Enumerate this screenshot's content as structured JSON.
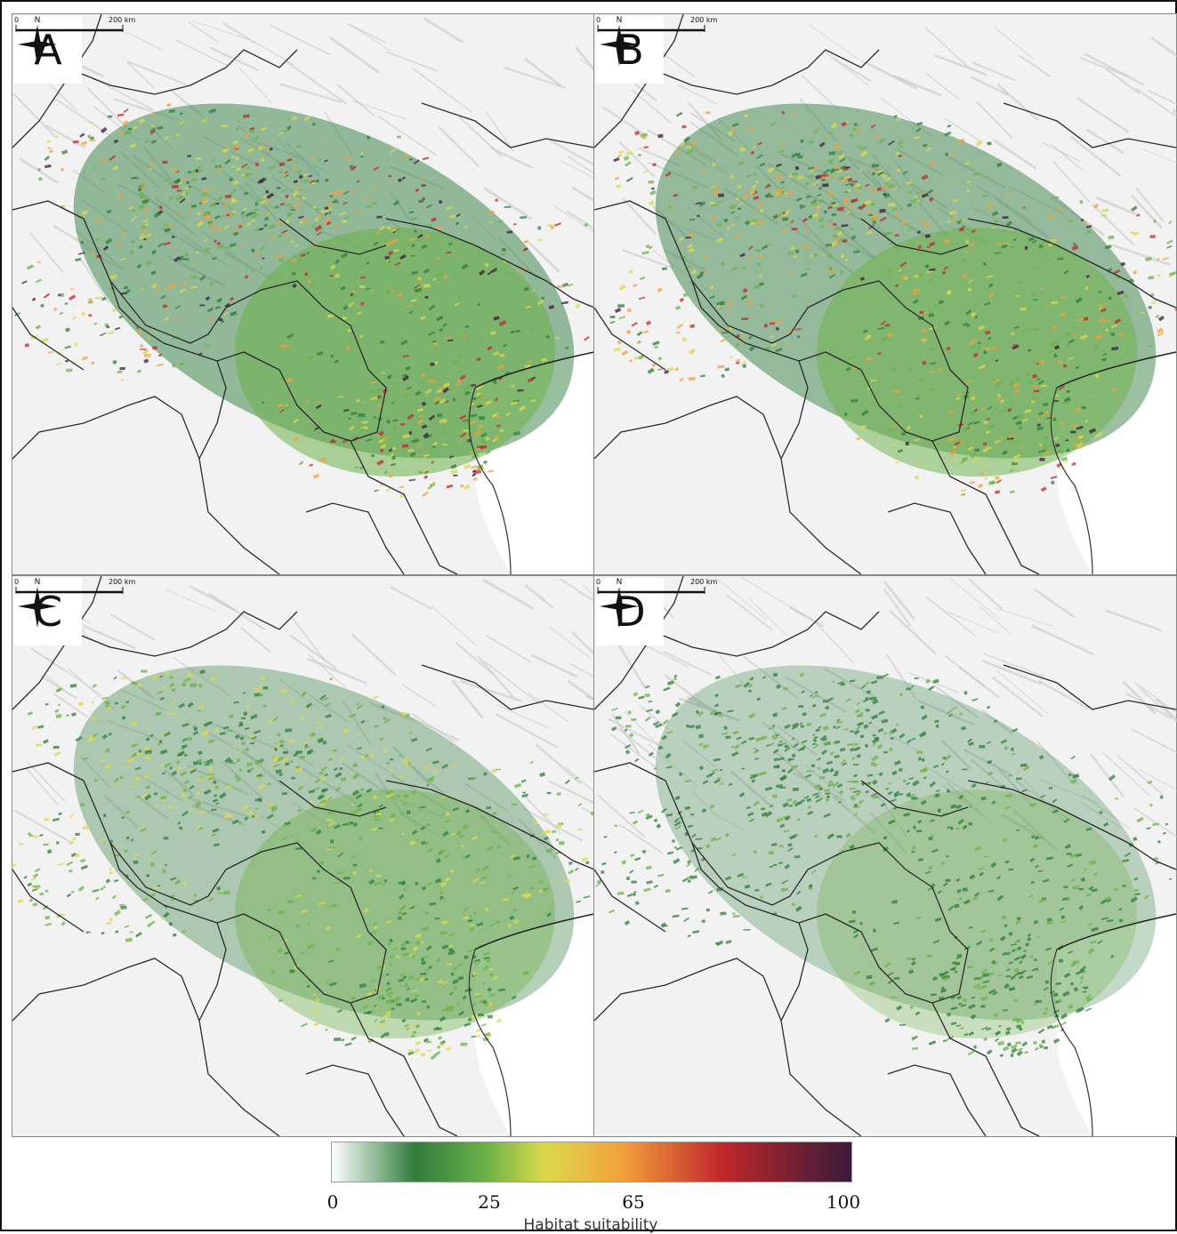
{
  "panels": [
    {
      "label": "A",
      "intensity": 1.0
    },
    {
      "label": "B",
      "intensity": 0.95
    },
    {
      "label": "C",
      "intensity": 0.55
    },
    {
      "label": "D",
      "intensity": 0.3
    }
  ],
  "north_label": "N",
  "scale": {
    "zero": "0",
    "distance": "200 km"
  },
  "legend": {
    "ticks": [
      {
        "label": "0",
        "value": 0
      },
      {
        "label": "25",
        "value": 25
      },
      {
        "label": "65",
        "value": 65
      },
      {
        "label": "100",
        "value": 100
      }
    ],
    "title": "Habitat suitability",
    "colors": [
      "#ffffff",
      "#2f7d3c",
      "#6db248",
      "#dcd94a",
      "#f3a03c",
      "#c0282a",
      "#3b1a3a"
    ]
  }
}
